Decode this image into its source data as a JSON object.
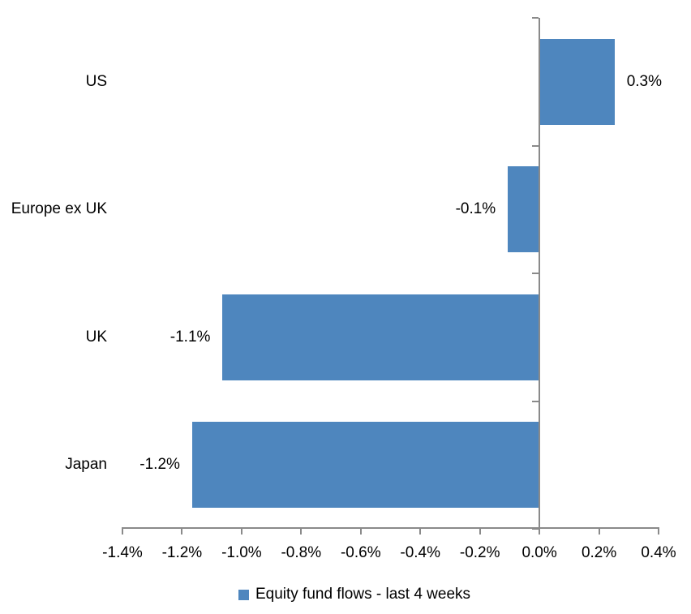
{
  "chart_data": {
    "type": "bar",
    "orientation": "horizontal",
    "title": "",
    "xlabel": "",
    "ylabel": "",
    "units": "percent",
    "categories": [
      "US",
      "Europe ex UK",
      "UK",
      "Japan"
    ],
    "values": [
      0.3,
      -0.1,
      -1.1,
      -1.2
    ],
    "value_labels": [
      "0.3%",
      "-0.1%",
      "-1.1%",
      "-1.2%"
    ],
    "plotted_values": [
      0.252,
      -0.106,
      -1.064,
      -1.166
    ],
    "series": [
      {
        "name": "Equity fund flows - last 4 weeks"
      }
    ],
    "legend": "Equity fund flows - last 4 weeks",
    "legend_position": "bottom",
    "xlim": [
      -1.4,
      0.4
    ],
    "x_ticks": [
      {
        "value": -1.4,
        "label": "-1.4%"
      },
      {
        "value": -1.2,
        "label": "-1.2%"
      },
      {
        "value": -1.0,
        "label": "-1.0%"
      },
      {
        "value": -0.8,
        "label": "-0.8%"
      },
      {
        "value": -0.6,
        "label": "-0.6%"
      },
      {
        "value": -0.4,
        "label": "-0.4%"
      },
      {
        "value": -0.2,
        "label": "-0.2%"
      },
      {
        "value": 0.0,
        "label": "0.0%"
      },
      {
        "value": 0.2,
        "label": "0.2%"
      },
      {
        "value": 0.4,
        "label": "0.4%"
      }
    ],
    "grid": false,
    "colors": {
      "bar": "#4e86be",
      "axis": "#8a8a8a",
      "text": "#000000",
      "background": "#ffffff"
    }
  }
}
